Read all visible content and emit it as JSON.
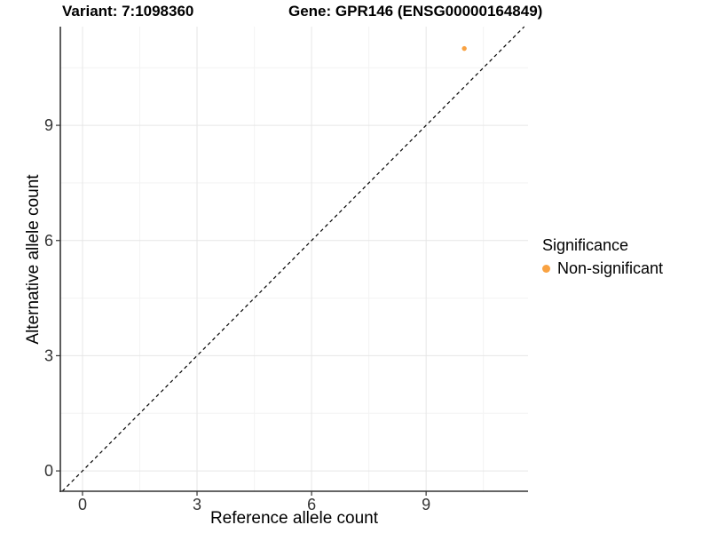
{
  "chart_data": {
    "type": "scatter",
    "title": "Variant: 7:1098360    Gene: GPR146 (ENSG00000164849)",
    "title_parts": {
      "variant": "Variant: 7:1098360",
      "gene": "Gene: GPR146 (ENSG00000164849)"
    },
    "xlabel": "Reference allele count",
    "ylabel": "Alternative allele count",
    "x_ticks": [
      0,
      3,
      6,
      9
    ],
    "y_ticks": [
      0,
      3,
      6,
      9
    ],
    "x_minor_gridlines": [
      1.5,
      4.5,
      7.5,
      10.5
    ],
    "y_minor_gridlines": [
      1.5,
      4.5,
      7.5,
      10.5
    ],
    "xlim": [
      -0.58,
      11.67
    ],
    "ylim": [
      -0.53,
      11.57
    ],
    "grid": true,
    "legend_position": "right",
    "identity_line": {
      "style": "dashed",
      "color": "#000000",
      "from": -0.53,
      "to": 11.57
    },
    "series": [
      {
        "name": "Non-significant",
        "color": "#F9A242",
        "points": [
          {
            "x": 10,
            "y": 11
          }
        ]
      }
    ],
    "legend": {
      "title": "Significance",
      "items": [
        {
          "label": "Non-significant",
          "color": "#F9A242"
        }
      ]
    },
    "colors": {
      "background": "#FFFFFF",
      "grid_major": "#E6E6E6",
      "grid_minor": "#F3F3F3",
      "axis": "#333333",
      "tick_text": "#333333",
      "point": "#F9A242"
    }
  }
}
